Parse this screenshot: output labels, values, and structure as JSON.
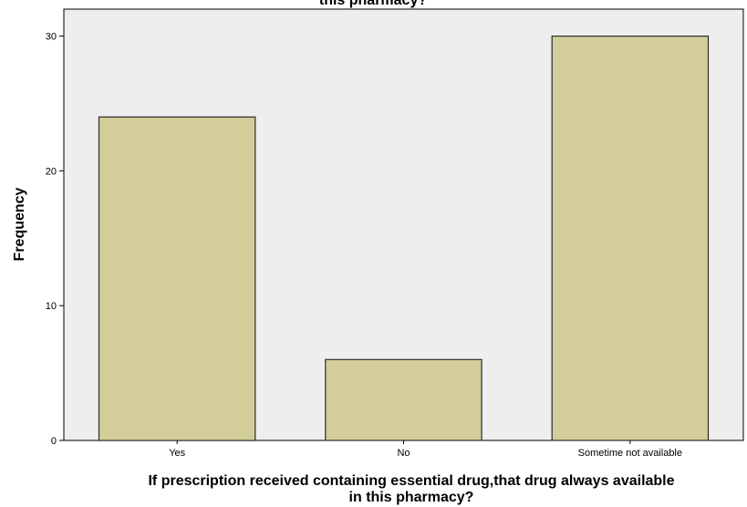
{
  "chart_data": {
    "type": "bar",
    "title": "this pharmacy?",
    "categories": [
      "Yes",
      "No",
      "Sometime not available"
    ],
    "values": [
      24,
      6,
      30
    ],
    "xlabel": [
      "If prescription received containing essential drug,that drug always available",
      "in this pharmacy?"
    ],
    "ylabel": "Frequency",
    "ylim": [
      0,
      32
    ],
    "yticks": [
      0,
      10,
      20,
      30
    ],
    "grid": false,
    "legend": "none",
    "colors": {
      "plot_background": "#eeeeee",
      "bar_fill": "#d3ce99",
      "bar_stroke": "#2b2b2b",
      "axis": "#000000"
    }
  }
}
